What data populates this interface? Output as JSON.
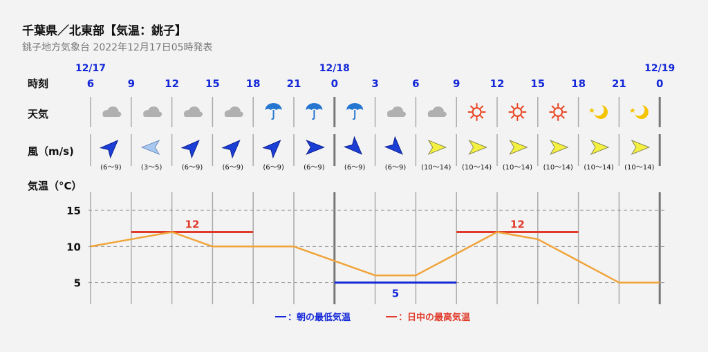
{
  "header": {
    "title": "千葉県／北東部【気温：銚子】",
    "subtitle": "銚子地方気象台 2022年12月17日05時発表"
  },
  "labels": {
    "time": "時刻",
    "weather": "天気",
    "wind": "風（m/s)",
    "temp": "気温（°C）"
  },
  "colors": {
    "accent_blue": "#1428d8",
    "max_red": "#e03a2a",
    "min_blue": "#1428d8",
    "temp_line": "#f0a43a",
    "sun": "#e8421e",
    "moon": "#f4c400",
    "cloud": "#b0b0b0",
    "umbrella": "#2576d0",
    "arrow_blue": "#1a3ed6",
    "arrow_lightblue": "#a8c8f0",
    "arrow_yellow": "#f4f040"
  },
  "chart_data": {
    "type": "line",
    "time_labels": [
      "6",
      "9",
      "12",
      "15",
      "18",
      "21",
      "0",
      "3",
      "6",
      "9",
      "12",
      "15",
      "18",
      "21",
      "0"
    ],
    "date_labels": [
      {
        "index": 0,
        "text": "12/17"
      },
      {
        "index": 6,
        "text": "12/18"
      },
      {
        "index": 14,
        "text": "12/19"
      }
    ],
    "weather": [
      "cloudy",
      "cloudy",
      "cloudy",
      "cloudy",
      "rain",
      "rain",
      "rain",
      "cloudy",
      "cloudy",
      "sunny",
      "sunny",
      "sunny",
      "clear-night",
      "clear-night"
    ],
    "wind": [
      {
        "dir": "NE",
        "speed": "(6～9)",
        "color": "blue"
      },
      {
        "dir": "E",
        "speed": "(3～5)",
        "color": "lightblue"
      },
      {
        "dir": "NE",
        "speed": "(6～9)",
        "color": "blue"
      },
      {
        "dir": "NE",
        "speed": "(6～9)",
        "color": "blue"
      },
      {
        "dir": "NE",
        "speed": "(6～9)",
        "color": "blue"
      },
      {
        "dir": "W",
        "speed": "(6～9)",
        "color": "blue"
      },
      {
        "dir": "NW",
        "speed": "(6～9)",
        "color": "blue"
      },
      {
        "dir": "NW",
        "speed": "(6～9)",
        "color": "blue"
      },
      {
        "dir": "W",
        "speed": "(10～14)",
        "color": "yellow"
      },
      {
        "dir": "W",
        "speed": "(10～14)",
        "color": "yellow"
      },
      {
        "dir": "W",
        "speed": "(10～14)",
        "color": "yellow"
      },
      {
        "dir": "W",
        "speed": "(10～14)",
        "color": "yellow"
      },
      {
        "dir": "W",
        "speed": "(10～14)",
        "color": "yellow"
      },
      {
        "dir": "W",
        "speed": "(10～14)",
        "color": "yellow"
      }
    ],
    "temperature": [
      10,
      11,
      12,
      10,
      10,
      10,
      8,
      6,
      6,
      9,
      12,
      11,
      8,
      5,
      5
    ],
    "yticks": [
      5,
      10,
      15
    ],
    "ylim": [
      2,
      17.5
    ],
    "max_temps": [
      {
        "from": 1,
        "to": 4,
        "value": 12,
        "label": "12"
      },
      {
        "from": 9,
        "to": 12,
        "value": 12,
        "label": "12"
      }
    ],
    "min_temps": [
      {
        "from": 6,
        "to": 9,
        "value": 5,
        "label": "5"
      }
    ],
    "legend": {
      "min": "：朝の最低気温",
      "max": "：日中の最高気温"
    }
  }
}
